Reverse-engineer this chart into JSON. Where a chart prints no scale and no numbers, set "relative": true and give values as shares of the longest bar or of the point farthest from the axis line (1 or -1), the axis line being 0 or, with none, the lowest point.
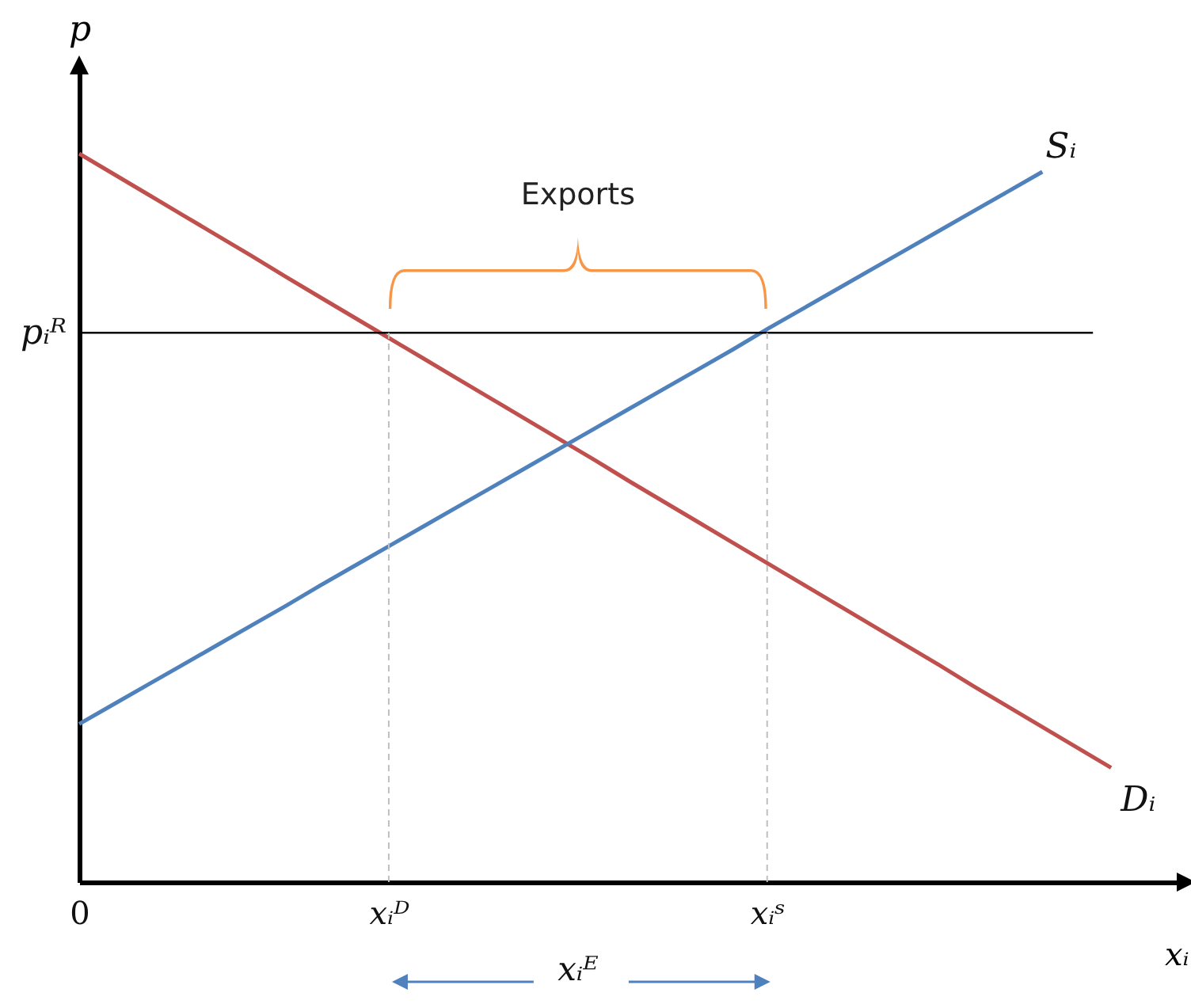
{
  "chart_data": {
    "type": "line",
    "relative": true,
    "xlabel": "xᵢ",
    "ylabel": "p",
    "categories": [
      "0",
      null,
      null,
      null,
      null,
      null,
      null,
      null,
      null,
      "xᵢᴰ",
      null,
      null,
      null,
      null,
      null,
      null,
      null,
      null,
      null,
      null,
      "xᵢˢ",
      null,
      null,
      null,
      null,
      null,
      null,
      null,
      null,
      null,
      null,
      null,
      null
    ],
    "series": [
      {
        "name": "Dᵢ",
        "color": "#c0504d",
        "values": [
          1,
          0.972,
          0.944,
          0.916,
          0.888,
          0.86,
          0.831,
          0.803,
          0.775,
          0.747,
          0.719,
          0.691,
          0.663,
          0.635,
          0.607,
          0.579,
          0.55,
          0.522,
          0.494,
          0.466,
          0.438,
          0.41,
          0.382,
          0.354,
          0.326,
          0.298,
          0.269,
          0.241,
          0.213,
          0.185,
          0.157,
          null,
          null
        ]
      },
      {
        "name": "Sᵢ",
        "color": "#4f81bd",
        "values": [
          0.217,
          0.244,
          0.271,
          0.298,
          0.325,
          0.352,
          0.379,
          0.407,
          0.434,
          0.461,
          0.488,
          0.515,
          0.542,
          0.569,
          0.596,
          0.623,
          0.65,
          0.677,
          0.704,
          0.731,
          0.759,
          0.786,
          0.813,
          0.84,
          0.867,
          0.894,
          0.921,
          0.948,
          0.975,
          null,
          null,
          null,
          null
        ]
      }
    ],
    "ref_lines": [
      {
        "axis": "y",
        "value": 0.754,
        "label": "pᵢᴿ",
        "color": "#000000",
        "line_style": "solid"
      },
      {
        "axis": "x",
        "value": "xᵢᴰ",
        "color": "#bfbfbf",
        "line_style": "dashed"
      },
      {
        "axis": "x",
        "value": "xᵢˢ",
        "color": "#bfbfbf",
        "line_style": "dashed"
      }
    ],
    "annotations": [
      "Exports",
      "xᵢᴱ"
    ],
    "marker": "none",
    "line_style": "solid"
  }
}
